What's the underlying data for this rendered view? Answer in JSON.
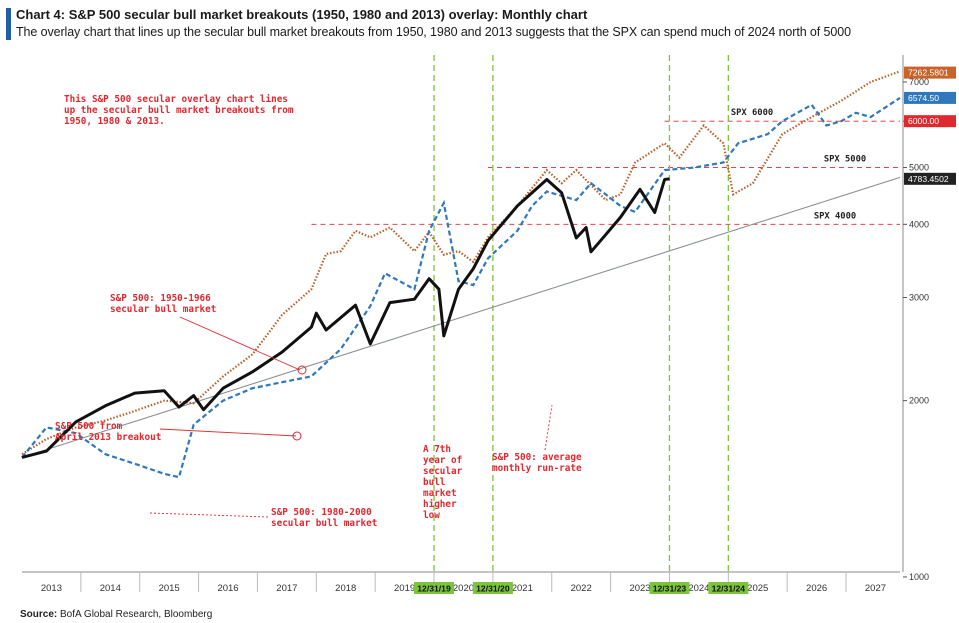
{
  "header": {
    "title": "Chart 4: S&P 500 secular bull market breakouts (1950, 1980 and 2013) overlay: Monthly chart",
    "subtitle": "The overlay chart that lines up the secular bull market breakouts from 1950, 1980 and 2013 suggests that the SPX can spend much of 2024 north of 5000"
  },
  "footer": {
    "source_label": "Source:",
    "source_text": " BofA Global Research, Bloomberg"
  },
  "colors": {
    "accent": "#1f5fa8",
    "annotation": "#e0282f",
    "orange_tag": "#c8642a",
    "blue_tag": "#2f78bd",
    "red_tag": "#e0282f",
    "black_tag": "#222222",
    "green_marker": "#7bc53b"
  },
  "chart_data": {
    "type": "line",
    "y_scale": "log",
    "ylim": [
      950,
      8000
    ],
    "xlim": [
      "2013-01",
      "2027-12"
    ],
    "y_ticks": [
      1000,
      2000,
      3000,
      4000,
      5000,
      6000,
      7000
    ],
    "x_tick_labels": [
      "2013",
      "2014",
      "2015",
      "2016",
      "2017",
      "2018",
      "2019",
      "2020",
      "2021",
      "2022",
      "2023",
      "2024",
      "2025",
      "2026",
      "2027"
    ],
    "series": [
      {
        "style": "black-solid",
        "label_value": "4783.4502",
        "points": [
          [
            "2013-01",
            1600
          ],
          [
            "2013-06",
            1640
          ],
          [
            "2013-12",
            1840
          ],
          [
            "2014-06",
            1960
          ],
          [
            "2014-12",
            2060
          ],
          [
            "2015-06",
            2080
          ],
          [
            "2015-09",
            1950
          ],
          [
            "2015-12",
            2040
          ],
          [
            "2016-02",
            1930
          ],
          [
            "2016-06",
            2100
          ],
          [
            "2016-12",
            2240
          ],
          [
            "2017-06",
            2420
          ],
          [
            "2017-12",
            2670
          ],
          [
            "2018-01",
            2820
          ],
          [
            "2018-03",
            2640
          ],
          [
            "2018-09",
            2910
          ],
          [
            "2018-12",
            2500
          ],
          [
            "2019-04",
            2940
          ],
          [
            "2019-09",
            2980
          ],
          [
            "2019-12",
            3230
          ],
          [
            "2020-02",
            3100
          ],
          [
            "2020-03",
            2580
          ],
          [
            "2020-06",
            3100
          ],
          [
            "2020-09",
            3360
          ],
          [
            "2020-12",
            3750
          ],
          [
            "2021-06",
            4300
          ],
          [
            "2021-12",
            4770
          ],
          [
            "2022-03",
            4530
          ],
          [
            "2022-06",
            3790
          ],
          [
            "2022-08",
            3950
          ],
          [
            "2022-09",
            3590
          ],
          [
            "2022-12",
            3840
          ],
          [
            "2023-03",
            4110
          ],
          [
            "2023-07",
            4590
          ],
          [
            "2023-10",
            4190
          ],
          [
            "2023-12",
            4770
          ],
          [
            "2024-01",
            4783
          ]
        ]
      },
      {
        "style": "orange-dotted",
        "name": "S&P 500: 1950-1966 secular bull market",
        "label_value": "7262.5801",
        "points": [
          [
            "2013-01",
            1620
          ],
          [
            "2013-06",
            1720
          ],
          [
            "2013-12",
            1800
          ],
          [
            "2014-06",
            1850
          ],
          [
            "2014-12",
            1920
          ],
          [
            "2015-06",
            2000
          ],
          [
            "2015-12",
            1980
          ],
          [
            "2016-06",
            2200
          ],
          [
            "2016-12",
            2400
          ],
          [
            "2017-06",
            2800
          ],
          [
            "2017-12",
            3100
          ],
          [
            "2018-03",
            3560
          ],
          [
            "2018-06",
            3600
          ],
          [
            "2018-09",
            3900
          ],
          [
            "2018-12",
            3800
          ],
          [
            "2019-04",
            3950
          ],
          [
            "2019-09",
            3600
          ],
          [
            "2019-12",
            3880
          ],
          [
            "2020-03",
            3550
          ],
          [
            "2020-06",
            3600
          ],
          [
            "2020-09",
            3450
          ],
          [
            "2020-12",
            3800
          ],
          [
            "2021-06",
            4300
          ],
          [
            "2021-12",
            4950
          ],
          [
            "2022-03",
            4700
          ],
          [
            "2022-06",
            4950
          ],
          [
            "2022-12",
            4400
          ],
          [
            "2023-03",
            4500
          ],
          [
            "2023-06",
            5100
          ],
          [
            "2023-12",
            5500
          ],
          [
            "2024-03",
            5200
          ],
          [
            "2024-08",
            5900
          ],
          [
            "2024-12",
            5500
          ],
          [
            "2025-02",
            4500
          ],
          [
            "2025-06",
            4700
          ],
          [
            "2025-12",
            5700
          ],
          [
            "2026-06",
            6100
          ],
          [
            "2026-12",
            6500
          ],
          [
            "2027-06",
            7000
          ],
          [
            "2027-12",
            7300
          ]
        ]
      },
      {
        "style": "blue-dashed",
        "name": "S&P 500: 1980-2000 secular bull market",
        "label_value": "6574.50",
        "points": [
          [
            "2013-01",
            1600
          ],
          [
            "2013-06",
            1800
          ],
          [
            "2013-12",
            1760
          ],
          [
            "2014-06",
            1620
          ],
          [
            "2014-12",
            1560
          ],
          [
            "2015-06",
            1500
          ],
          [
            "2015-09",
            1480
          ],
          [
            "2015-12",
            1820
          ],
          [
            "2016-06",
            2000
          ],
          [
            "2016-12",
            2100
          ],
          [
            "2017-06",
            2150
          ],
          [
            "2017-12",
            2200
          ],
          [
            "2018-06",
            2450
          ],
          [
            "2018-12",
            2900
          ],
          [
            "2019-03",
            3300
          ],
          [
            "2019-09",
            3100
          ],
          [
            "2019-12",
            3900
          ],
          [
            "2020-03",
            4350
          ],
          [
            "2020-06",
            3200
          ],
          [
            "2020-09",
            3150
          ],
          [
            "2020-12",
            3500
          ],
          [
            "2021-06",
            3900
          ],
          [
            "2021-09",
            4300
          ],
          [
            "2021-12",
            4550
          ],
          [
            "2022-06",
            4400
          ],
          [
            "2022-09",
            4700
          ],
          [
            "2022-12",
            4500
          ],
          [
            "2023-03",
            4300
          ],
          [
            "2023-06",
            4200
          ],
          [
            "2023-12",
            4950
          ],
          [
            "2024-06",
            5000
          ],
          [
            "2024-12",
            5100
          ],
          [
            "2025-03",
            5500
          ],
          [
            "2025-09",
            5700
          ],
          [
            "2025-12",
            6000
          ],
          [
            "2026-06",
            6400
          ],
          [
            "2026-09",
            5900
          ],
          [
            "2026-12",
            6000
          ],
          [
            "2027-03",
            6200
          ],
          [
            "2027-06",
            6100
          ],
          [
            "2027-12",
            6575
          ]
        ]
      },
      {
        "style": "gray-solid",
        "name": "S&P 500: average monthly run-rate",
        "points": [
          [
            "2013-01",
            1600
          ],
          [
            "2027-12",
            4810
          ]
        ]
      }
    ],
    "reference_lines": [
      {
        "label": "SPX 6000",
        "value": 6000,
        "tag": "6000.00"
      },
      {
        "label": "SPX 5000",
        "value": 5000
      },
      {
        "label": "SPX 4000",
        "value": 4000
      }
    ],
    "vertical_markers": [
      "12/31/19",
      "12/31/20",
      "12/31/23",
      "12/31/24"
    ],
    "annotations": [
      "This S&P 500 secular overlay chart lines up the secular bull market breakouts from 1950, 1980 & 2013.",
      "S&P 500: 1950-1966 secular bull market",
      "S&P 500 from April 2013 breakout",
      "A 7th year of secular bull market higher low",
      "S&P 500: average monthly run-rate",
      "S&P 500: 1980-2000 secular bull market"
    ]
  }
}
